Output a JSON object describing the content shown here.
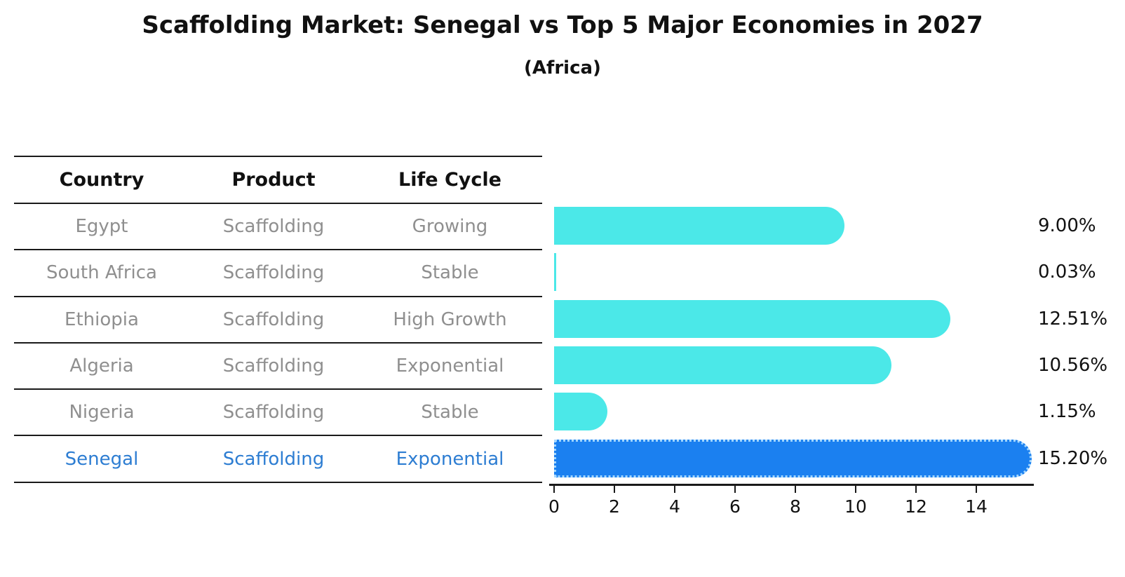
{
  "title": "Scaffolding Market: Senegal vs Top 5 Major Economies in 2027",
  "subtitle": "(Africa)",
  "table": {
    "headers": [
      "Country",
      "Product",
      "Life Cycle"
    ],
    "rows": [
      {
        "country": "Egypt",
        "product": "Scaffolding",
        "life_cycle": "Growing"
      },
      {
        "country": "South Africa",
        "product": "Scaffolding",
        "life_cycle": "Stable"
      },
      {
        "country": "Ethiopia",
        "product": "Scaffolding",
        "life_cycle": "High Growth"
      },
      {
        "country": "Algeria",
        "product": "Scaffolding",
        "life_cycle": "Exponential"
      },
      {
        "country": "Nigeria",
        "product": "Scaffolding",
        "life_cycle": "Stable"
      },
      {
        "country": "Senegal",
        "product": "Scaffolding",
        "life_cycle": "Exponential"
      }
    ],
    "highlight_row": "Senegal"
  },
  "chart_data": {
    "type": "bar",
    "orientation": "horizontal",
    "categories": [
      "Egypt",
      "South Africa",
      "Ethiopia",
      "Algeria",
      "Nigeria",
      "Senegal"
    ],
    "values": [
      9.0,
      0.03,
      12.51,
      10.56,
      1.15,
      15.2
    ],
    "value_labels": [
      "9.00%",
      "0.03%",
      "12.51%",
      "10.56%",
      "1.15%",
      "15.20%"
    ],
    "x_ticks": [
      0,
      2,
      4,
      6,
      8,
      10,
      12,
      14
    ],
    "xlim": [
      0,
      15.9
    ],
    "highlight_index": 5,
    "grid": false,
    "legend": false,
    "title": "Scaffolding Market: Senegal vs Top 5 Major Economies in 2027",
    "subtitle": "(Africa)"
  },
  "colors": {
    "bar": "#4BE8E8",
    "highlight_bar": "#1B80F0",
    "highlight_text": "#2D7DD2",
    "table_text": "#8F8F8F",
    "axis": "#1A1A1A",
    "label_text": "#111111"
  }
}
